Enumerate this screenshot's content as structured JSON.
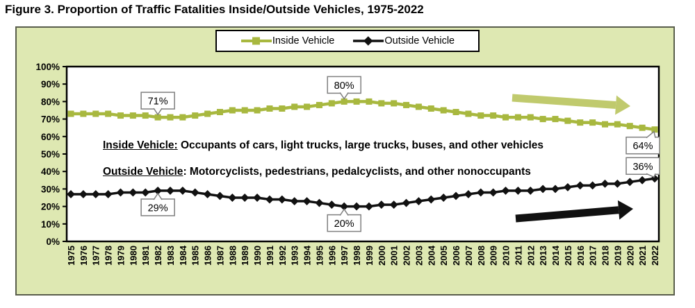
{
  "figure": {
    "title": "Figure 3. Proportion of Traffic Fatalities Inside/Outside Vehicles, 1975-2022"
  },
  "legend": {
    "inside_label": "Inside Vehicle",
    "outside_label": "Outside Vehicle"
  },
  "notes": {
    "inside_term": "Inside Vehicle:",
    "inside_rest": " Occupants of cars, light trucks, large trucks, buses, and other vehicles",
    "outside_term": "Outside Vehicle",
    "outside_rest": ": Motorcyclists, pedestrians, pedalcyclists, and other nonoccupants"
  },
  "colors": {
    "inside_line": "#a8b83f",
    "inside_arrow": "#c0ca6d",
    "outside_line": "#111111",
    "outside_arrow": "#111111",
    "panel_bg": "#dee8b2",
    "plot_bg": "#ffffff",
    "plot_frame": "#000000",
    "callout_border": "#7f7f7f",
    "text": "#000000"
  },
  "chart_data": {
    "type": "line",
    "title": "Figure 3. Proportion of Traffic Fatalities Inside/Outside Vehicles, 1975-2022",
    "xlabel": "",
    "ylabel": "",
    "ylim": [
      0,
      100
    ],
    "grid": false,
    "legend_position": "top-center",
    "y_tick_labels": [
      "100%",
      "90%",
      "80%",
      "70%",
      "60%",
      "50%",
      "40%",
      "30%",
      "20%",
      "10%",
      "0%"
    ],
    "x": [
      1975,
      1976,
      1977,
      1978,
      1979,
      1980,
      1981,
      1982,
      1983,
      1984,
      1985,
      1986,
      1987,
      1988,
      1989,
      1990,
      1991,
      1992,
      1993,
      1994,
      1995,
      1996,
      1997,
      1998,
      1999,
      2000,
      2001,
      2002,
      2003,
      2004,
      2005,
      2006,
      2007,
      2008,
      2009,
      2010,
      2011,
      2012,
      2013,
      2014,
      2015,
      2016,
      2017,
      2018,
      2019,
      2020,
      2021,
      2022
    ],
    "series": [
      {
        "name": "Inside Vehicle",
        "marker": "square",
        "values": [
          73,
          73,
          73,
          73,
          72,
          72,
          72,
          71,
          71,
          71,
          72,
          73,
          74,
          75,
          75,
          75,
          76,
          76,
          77,
          77,
          78,
          79,
          80,
          80,
          80,
          79,
          79,
          78,
          77,
          76,
          75,
          74,
          73,
          72,
          72,
          71,
          71,
          71,
          70,
          70,
          69,
          68,
          68,
          67,
          67,
          66,
          65,
          64
        ]
      },
      {
        "name": "Outside Vehicle",
        "marker": "diamond",
        "values": [
          27,
          27,
          27,
          27,
          28,
          28,
          28,
          29,
          29,
          29,
          28,
          27,
          26,
          25,
          25,
          25,
          24,
          24,
          23,
          23,
          22,
          21,
          20,
          20,
          20,
          21,
          21,
          22,
          23,
          24,
          25,
          26,
          27,
          28,
          28,
          29,
          29,
          29,
          30,
          30,
          31,
          32,
          32,
          33,
          33,
          34,
          35,
          36
        ]
      }
    ],
    "callouts": [
      {
        "text": "71%",
        "year": 1982,
        "series": 0,
        "placement": "above"
      },
      {
        "text": "80%",
        "year": 1997,
        "series": 0,
        "placement": "above"
      },
      {
        "text": "64%",
        "year": 2022,
        "series": 0,
        "placement": "left-below"
      },
      {
        "text": "29%",
        "year": 1982,
        "series": 1,
        "placement": "below"
      },
      {
        "text": "20%",
        "year": 1997,
        "series": 1,
        "placement": "below"
      },
      {
        "text": "36%",
        "year": 2022,
        "series": 1,
        "placement": "left-above"
      }
    ],
    "trend_arrows": [
      {
        "series": "Inside Vehicle",
        "direction": "declining"
      },
      {
        "series": "Outside Vehicle",
        "direction": "rising"
      }
    ]
  }
}
